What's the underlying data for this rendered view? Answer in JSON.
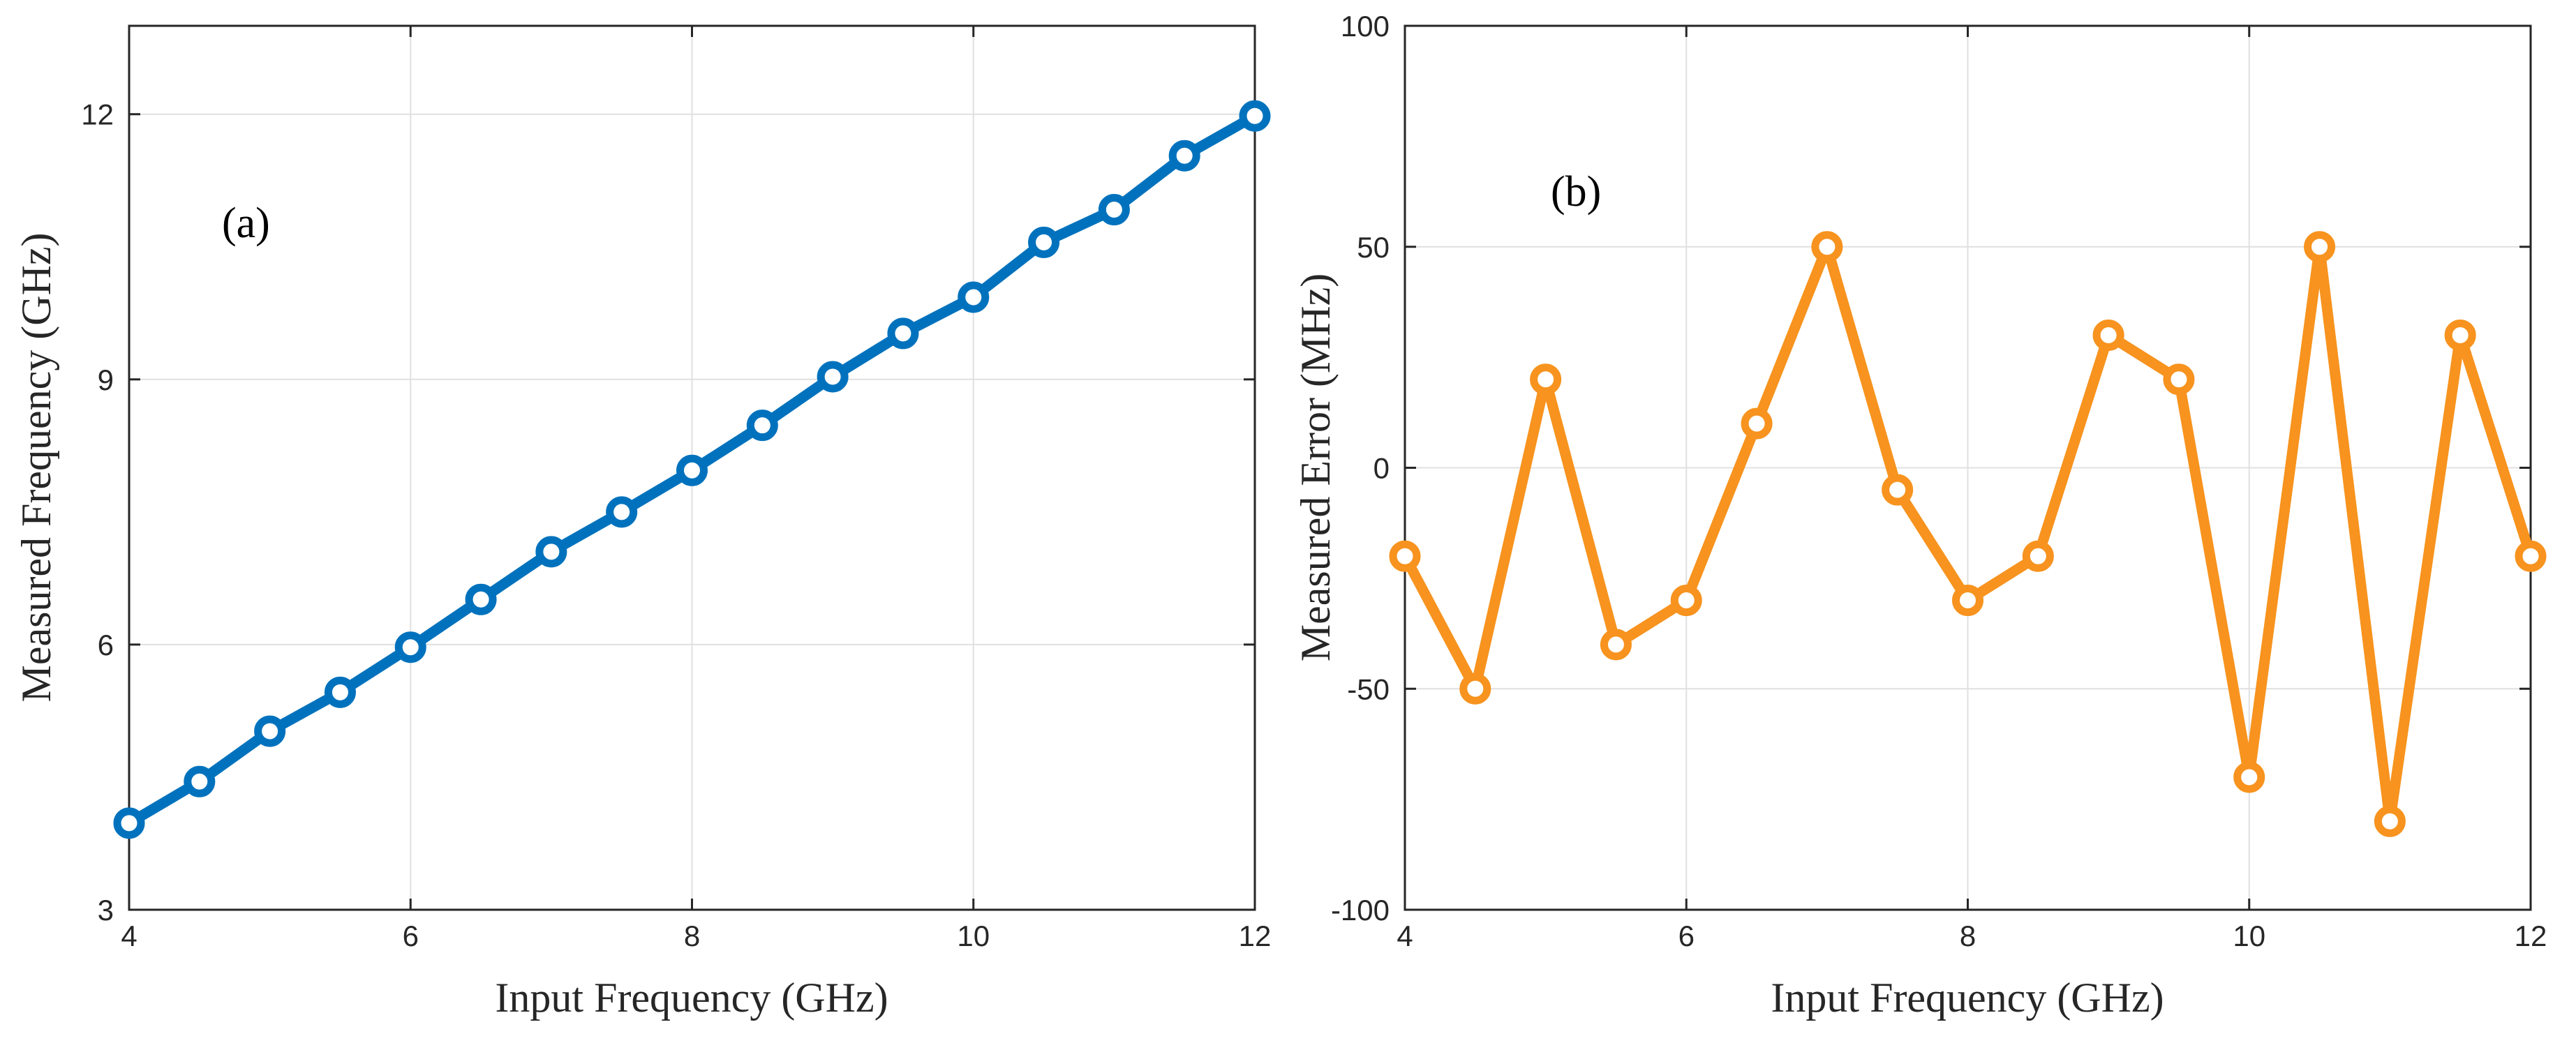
{
  "chart_data": [
    {
      "type": "line",
      "panel_label": "(a)",
      "title": "",
      "xlabel": "Input Frequency (GHz)",
      "ylabel": "Measured Frequency (GHz)",
      "xlim": [
        4,
        12
      ],
      "ylim": [
        3,
        13
      ],
      "xticks": [
        4,
        6,
        8,
        10,
        12
      ],
      "yticks": [
        3,
        6,
        9,
        12
      ],
      "grid": true,
      "series": [
        {
          "name": "Measured Frequency",
          "color": "#0072BD",
          "marker": "circle",
          "x": [
            4,
            4.5,
            5,
            5.5,
            6,
            6.5,
            7,
            7.5,
            8,
            8.5,
            9,
            9.5,
            10,
            10.5,
            11,
            11.5,
            12
          ],
          "y": [
            3.98,
            4.45,
            5.02,
            5.46,
            5.97,
            6.51,
            7.05,
            7.5,
            7.97,
            8.48,
            9.03,
            9.52,
            9.93,
            10.55,
            10.92,
            11.53,
            11.98
          ]
        }
      ]
    },
    {
      "type": "line",
      "panel_label": "(b)",
      "title": "",
      "xlabel": "Input Frequency (GHz)",
      "ylabel": "Measured Error (MHz)",
      "xlim": [
        4,
        12
      ],
      "ylim": [
        -100,
        100
      ],
      "xticks": [
        4,
        6,
        8,
        10,
        12
      ],
      "yticks": [
        -100,
        -50,
        0,
        50,
        100
      ],
      "grid": true,
      "series": [
        {
          "name": "Measured Error",
          "color": "#F7931E",
          "marker": "circle",
          "x": [
            4,
            4.5,
            5,
            5.5,
            6,
            6.5,
            7,
            7.5,
            8,
            8.5,
            9,
            9.5,
            10,
            10.5,
            11,
            11.5,
            12
          ],
          "y": [
            -20,
            -50,
            20,
            -40,
            -30,
            10,
            50,
            -5,
            -30,
            -20,
            30,
            20,
            -70,
            50,
            -80,
            30,
            -20
          ]
        }
      ]
    }
  ]
}
